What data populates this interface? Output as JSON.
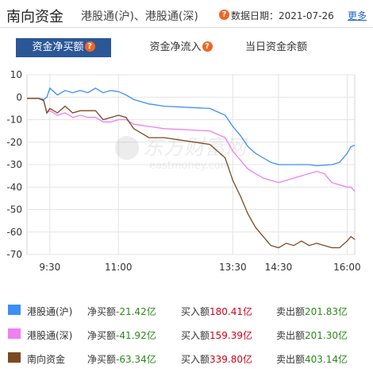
{
  "header": {
    "title": "南向资金",
    "subtitle": "港股通(沪)、港股通(深)",
    "date_label": "数据日期：2021-07-26",
    "more_label": "更多",
    "help_icon": "question-icon",
    "help_text": "?"
  },
  "tabs": [
    {
      "label": "资金净买额",
      "active": true,
      "help": "?"
    },
    {
      "label": "资金净流入",
      "active": false,
      "help": "?"
    },
    {
      "label": "当日资金余额",
      "active": false
    }
  ],
  "watermark": {
    "cn": "东方财富网",
    "en": "eastmoney.com"
  },
  "colors": {
    "sh": "#3d8ef5",
    "sz": "#f07ff0",
    "south": "#7b4a20",
    "accent": "#2b5797"
  },
  "chart_data": {
    "type": "line",
    "ylim": [
      -70,
      10
    ],
    "yticks": [
      "10",
      "0",
      "-10",
      "-20",
      "-30",
      "-40",
      "-50",
      "-60",
      "-70"
    ],
    "xticks": [
      "9:30",
      "11:00",
      "13:30",
      "14:30",
      "16:00"
    ],
    "x_domain_labels": [
      "9:00",
      "16:10"
    ],
    "grid": true,
    "series": [
      {
        "name": "港股通(沪)",
        "color": "#3d8ef5",
        "points": [
          [
            "9:00",
            -0.5
          ],
          [
            "9:15",
            -0.5
          ],
          [
            "9:20",
            -0.8
          ],
          [
            "9:22",
            -1
          ],
          [
            "9:26",
            0
          ],
          [
            "9:30",
            4
          ],
          [
            "9:40",
            1
          ],
          [
            "9:50",
            3
          ],
          [
            "10:00",
            2
          ],
          [
            "10:10",
            3
          ],
          [
            "10:20",
            2
          ],
          [
            "10:30",
            4
          ],
          [
            "10:40",
            2
          ],
          [
            "10:50",
            3
          ],
          [
            "11:00",
            2.5
          ],
          [
            "11:10",
            1
          ],
          [
            "11:20",
            -1
          ],
          [
            "11:40",
            -3
          ],
          [
            "12:00",
            -4
          ],
          [
            "13:00",
            -5
          ],
          [
            "13:20",
            -8
          ],
          [
            "13:30",
            -13
          ],
          [
            "13:40",
            -17
          ],
          [
            "13:50",
            -22
          ],
          [
            "14:00",
            -25
          ],
          [
            "14:10",
            -27
          ],
          [
            "14:20",
            -29
          ],
          [
            "14:30",
            -30
          ],
          [
            "14:50",
            -30
          ],
          [
            "15:10",
            -30
          ],
          [
            "15:20",
            -30.5
          ],
          [
            "15:40",
            -30
          ],
          [
            "15:50",
            -29
          ],
          [
            "16:00",
            -25
          ],
          [
            "16:05",
            -22
          ],
          [
            "16:10",
            -21.4
          ]
        ]
      },
      {
        "name": "港股通(深)",
        "color": "#f07ff0",
        "points": [
          [
            "9:00",
            -0.5
          ],
          [
            "9:15",
            -0.5
          ],
          [
            "9:22",
            -1.5
          ],
          [
            "9:26",
            -7
          ],
          [
            "9:30",
            -6
          ],
          [
            "9:40",
            -8
          ],
          [
            "9:50",
            -7
          ],
          [
            "10:00",
            -9
          ],
          [
            "10:10",
            -8
          ],
          [
            "10:20",
            -9
          ],
          [
            "10:30",
            -9
          ],
          [
            "10:40",
            -11
          ],
          [
            "10:50",
            -11
          ],
          [
            "11:00",
            -10
          ],
          [
            "11:10",
            -10
          ],
          [
            "11:20",
            -12
          ],
          [
            "11:40",
            -13
          ],
          [
            "12:00",
            -14
          ],
          [
            "13:00",
            -15
          ],
          [
            "13:20",
            -18
          ],
          [
            "13:30",
            -24
          ],
          [
            "13:40",
            -28
          ],
          [
            "13:50",
            -32
          ],
          [
            "14:00",
            -34
          ],
          [
            "14:10",
            -36
          ],
          [
            "14:20",
            -37
          ],
          [
            "14:30",
            -38
          ],
          [
            "14:40",
            -37
          ],
          [
            "14:50",
            -36
          ],
          [
            "15:00",
            -35
          ],
          [
            "15:10",
            -34
          ],
          [
            "15:20",
            -33
          ],
          [
            "15:30",
            -34
          ],
          [
            "15:40",
            -38
          ],
          [
            "15:50",
            -39
          ],
          [
            "16:00",
            -40
          ],
          [
            "16:05",
            -40
          ],
          [
            "16:10",
            -41.9
          ]
        ]
      },
      {
        "name": "南向资金",
        "color": "#7b4a20",
        "points": [
          [
            "9:00",
            -0.5
          ],
          [
            "9:15",
            -0.5
          ],
          [
            "9:22",
            -1.5
          ],
          [
            "9:26",
            -7
          ],
          [
            "9:30",
            -5
          ],
          [
            "9:40",
            -7
          ],
          [
            "9:50",
            -4
          ],
          [
            "10:00",
            -7
          ],
          [
            "10:10",
            -6
          ],
          [
            "10:20",
            -6
          ],
          [
            "10:30",
            -6
          ],
          [
            "10:40",
            -10
          ],
          [
            "10:50",
            -9
          ],
          [
            "11:00",
            -8
          ],
          [
            "11:10",
            -9
          ],
          [
            "11:20",
            -14
          ],
          [
            "11:40",
            -18
          ],
          [
            "12:00",
            -18
          ],
          [
            "13:00",
            -21
          ],
          [
            "13:20",
            -27
          ],
          [
            "13:30",
            -37
          ],
          [
            "13:40",
            -44
          ],
          [
            "13:50",
            -52
          ],
          [
            "14:00",
            -58
          ],
          [
            "14:10",
            -62
          ],
          [
            "14:20",
            -66
          ],
          [
            "14:30",
            -67
          ],
          [
            "14:40",
            -65
          ],
          [
            "14:50",
            -66
          ],
          [
            "15:00",
            -64
          ],
          [
            "15:10",
            -66
          ],
          [
            "15:20",
            -65
          ],
          [
            "15:30",
            -66
          ],
          [
            "15:40",
            -67
          ],
          [
            "15:50",
            -67
          ],
          [
            "16:00",
            -64
          ],
          [
            "16:05",
            -62
          ],
          [
            "16:10",
            -63.3
          ]
        ]
      }
    ]
  },
  "legend": [
    {
      "name": "港股通(沪)",
      "color": "#3d8ef5",
      "net_label": "净买额",
      "net": "-21.42亿",
      "buy_label": "买入额",
      "buy": "180.41亿",
      "sell_label": "卖出额",
      "sell": "201.83亿"
    },
    {
      "name": "港股通(深)",
      "color": "#f07ff0",
      "net_label": "净买额",
      "net": "-41.92亿",
      "buy_label": "买入额",
      "buy": "159.39亿",
      "sell_label": "卖出额",
      "sell": "201.30亿"
    },
    {
      "name": "南向资金",
      "color": "#7b4a20",
      "net_label": "净买额",
      "net": "-63.34亿",
      "buy_label": "买入额",
      "buy": "339.80亿",
      "sell_label": "卖出额",
      "sell": "403.14亿"
    }
  ]
}
